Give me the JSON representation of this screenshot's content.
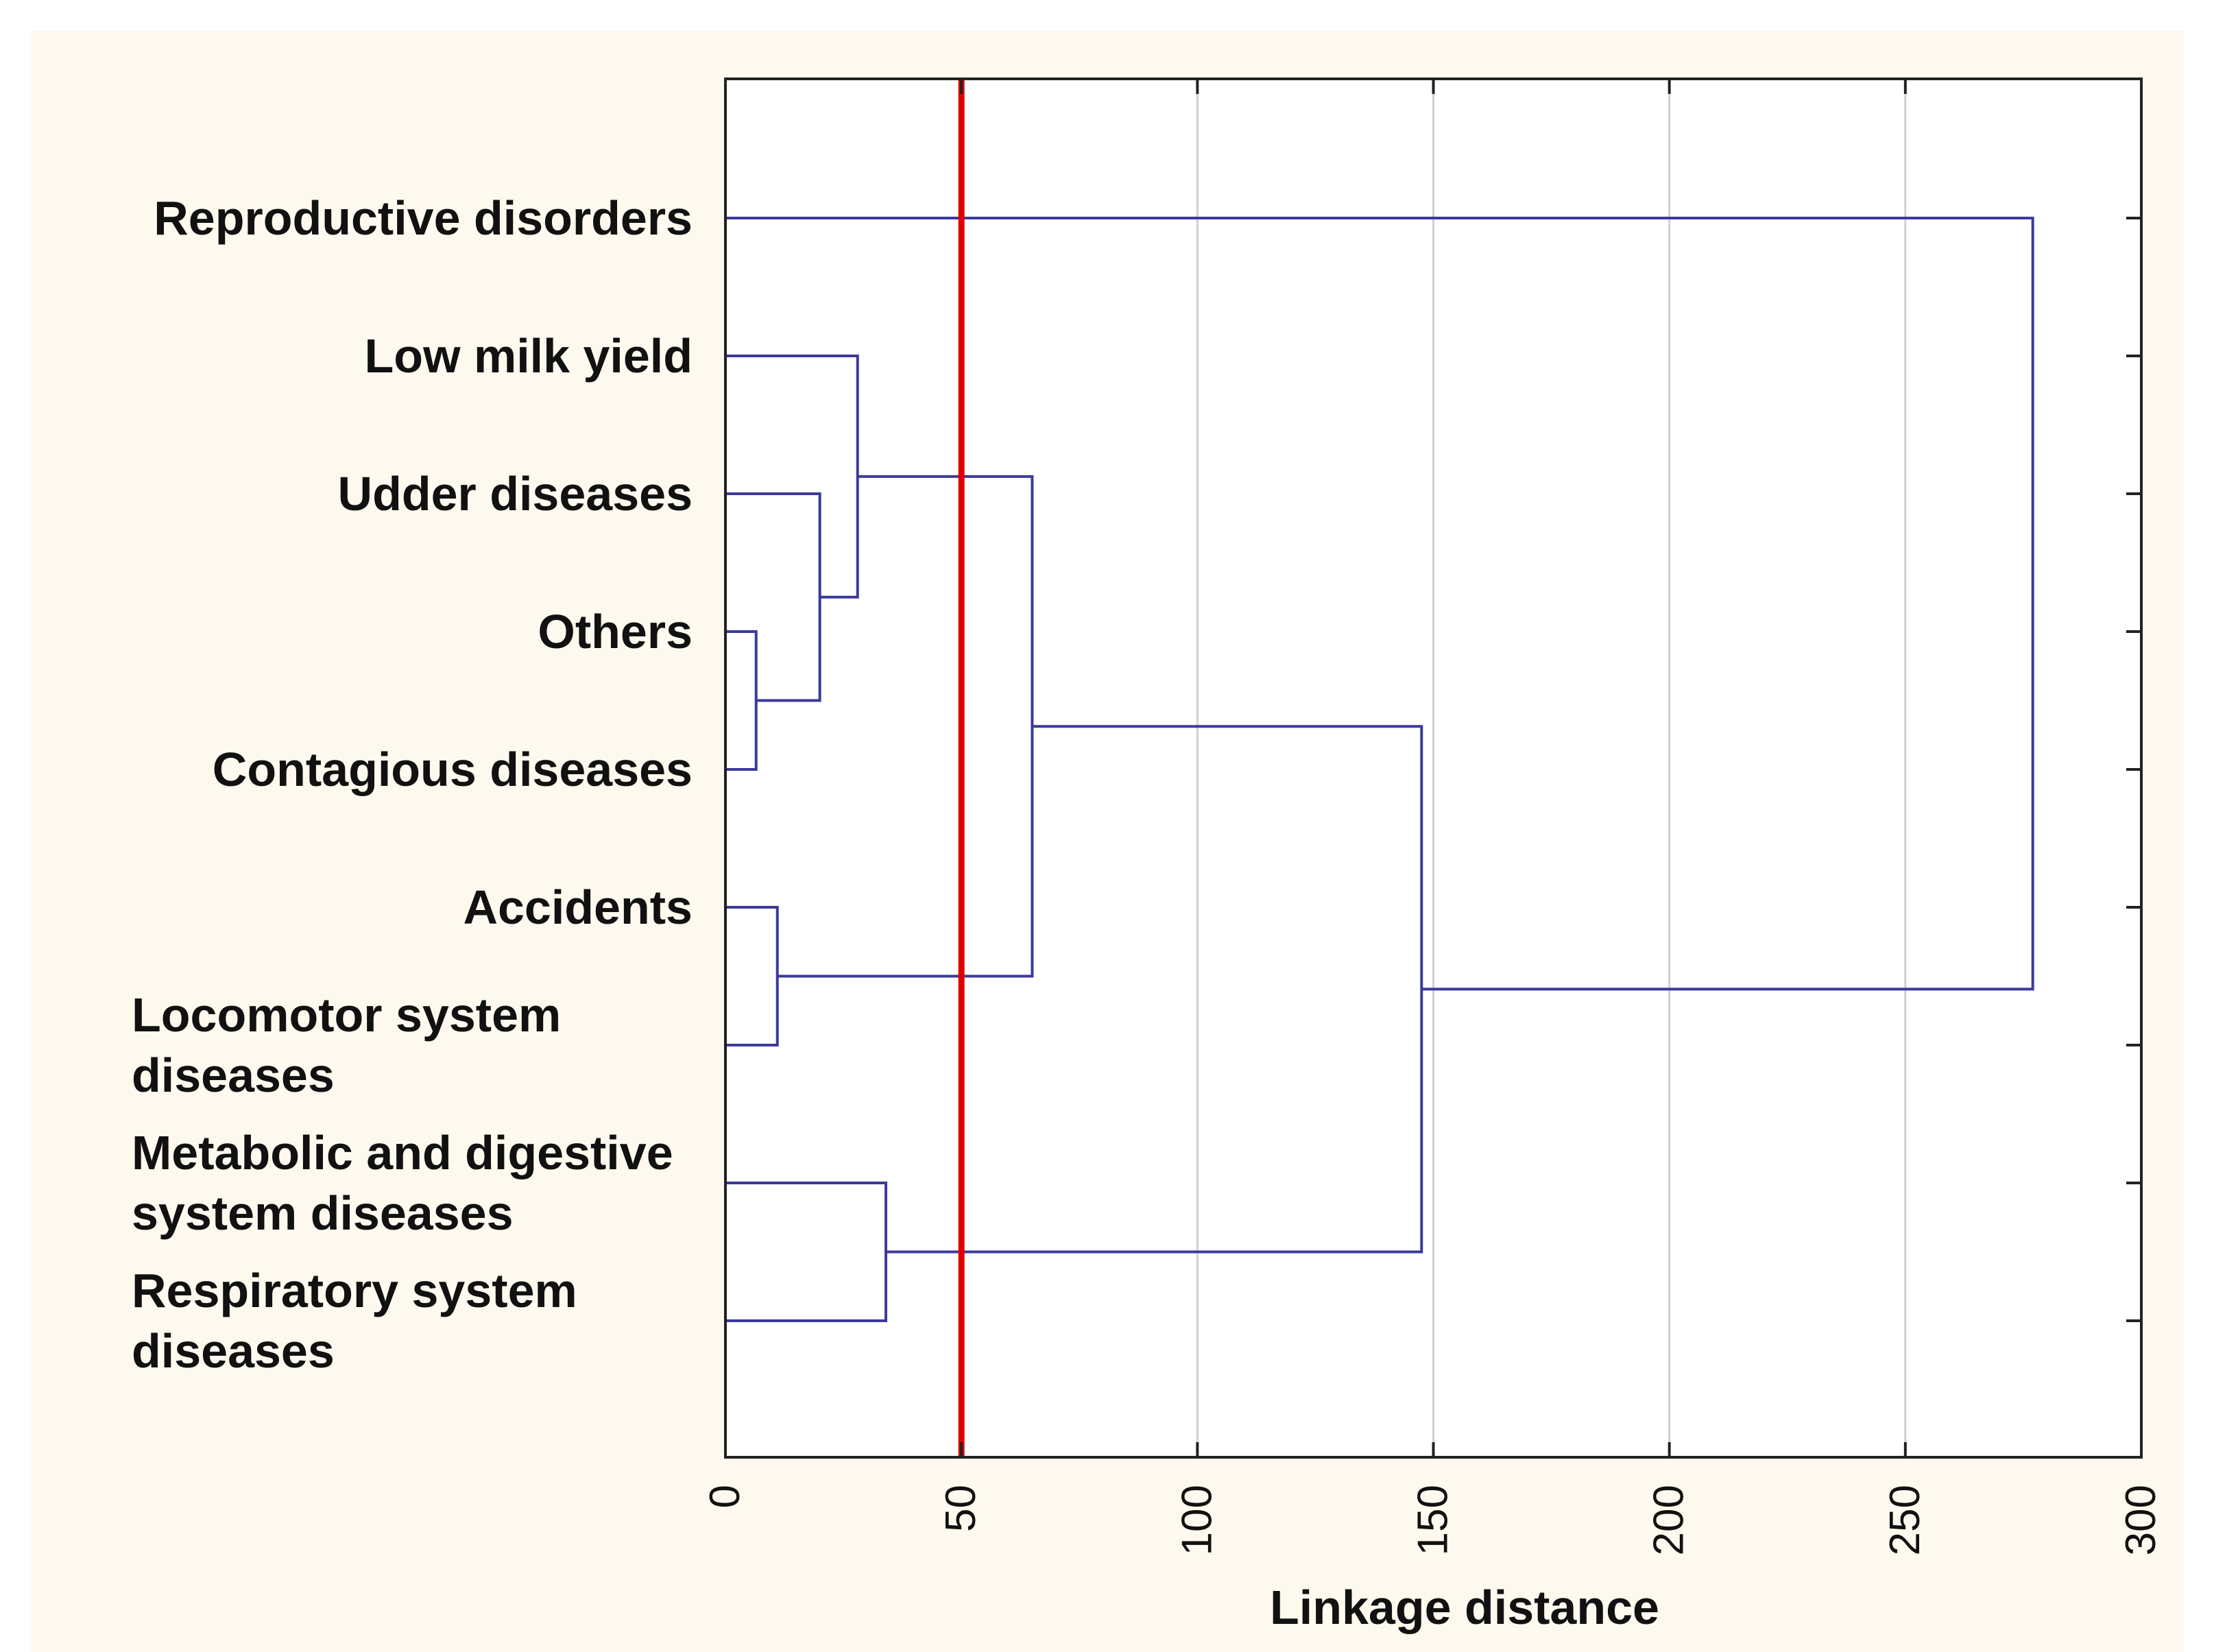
{
  "chart_data": {
    "type": "dendrogram",
    "orientation": "horizontal",
    "xlabel": "Linkage distance",
    "xlim": [
      0,
      300
    ],
    "xticks": [
      "0",
      "50",
      "100",
      "150",
      "200",
      "250",
      "300"
    ],
    "grid": true,
    "cut_line": {
      "distance": 50,
      "color": "#e00000"
    },
    "leaves": [
      {
        "name": "Reproductive disorders",
        "lines": [
          "Reproductive disorders"
        ]
      },
      {
        "name": "Low milk yield",
        "lines": [
          "Low milk yield"
        ]
      },
      {
        "name": "Udder diseases",
        "lines": [
          "Udder diseases"
        ]
      },
      {
        "name": "Others",
        "lines": [
          "Others"
        ]
      },
      {
        "name": "Contagious diseases",
        "lines": [
          "Contagious diseases"
        ]
      },
      {
        "name": "Accidents",
        "lines": [
          "Accidents"
        ]
      },
      {
        "name": "Locomotor system diseases",
        "lines": [
          "Locomotor system",
          "diseases"
        ]
      },
      {
        "name": "Metabolic and digestive system diseases",
        "lines": [
          "Metabolic and digestive",
          "system diseases"
        ]
      },
      {
        "name": "Respiratory system diseases",
        "lines": [
          "Respiratory system",
          "diseases"
        ]
      }
    ],
    "merges": [
      {
        "left": "L3",
        "right": "L4",
        "distance": 6.5
      },
      {
        "left": "L5",
        "right": "L6",
        "distance": 11
      },
      {
        "left": "L2",
        "right": "M0",
        "distance": 20
      },
      {
        "left": "L1",
        "right": "M2",
        "distance": 28
      },
      {
        "left": "L7",
        "right": "L8",
        "distance": 34
      },
      {
        "left": "M3",
        "right": "M1",
        "distance": 65
      },
      {
        "left": "M5",
        "right": "M4",
        "distance": 147.5
      },
      {
        "left": "L0",
        "right": "M6",
        "distance": 277
      }
    ],
    "colors": {
      "branch": "#3a3a9c",
      "grid": "#d0d0d0",
      "frame": "#222222",
      "outer_background": "#fdf9ee",
      "plot_background": "#ffffff"
    }
  }
}
